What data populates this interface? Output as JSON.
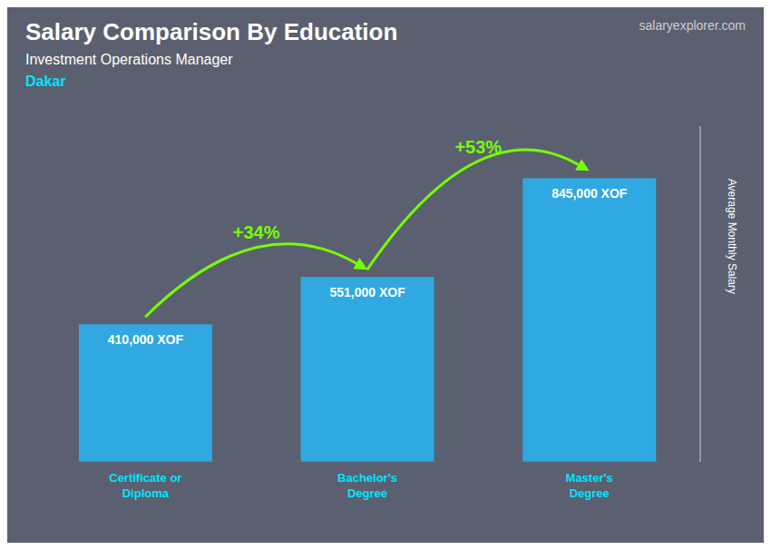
{
  "chart_data": {
    "type": "bar",
    "title": "Salary Comparison By Education",
    "subtitle": "Investment Operations Manager",
    "ylabel": "Average Monthly Salary",
    "categories": [
      "Certificate or\nDiploma",
      "Bachelor's\nDegree",
      "Master's\nDegree"
    ],
    "values": [
      410000,
      551000,
      845000
    ],
    "value_labels": [
      "410,000 XOF",
      "551,000 XOF",
      "845,000 XOF"
    ],
    "data_labels": true,
    "color": "#29b6f6",
    "ylim": [
      0,
      1000000
    ],
    "tick_labels": "x",
    "grid": false,
    "annotations": [
      {
        "text": "Dakar"
      },
      {
        "text": "salaryexplorer.com"
      },
      {
        "text": "+34%",
        "from": "Certificate or\nDiploma",
        "to": "Bachelor's\nDegree"
      },
      {
        "text": "+53%",
        "from": "Bachelor's\nDegree",
        "to": "Master's\nDegree"
      }
    ]
  }
}
